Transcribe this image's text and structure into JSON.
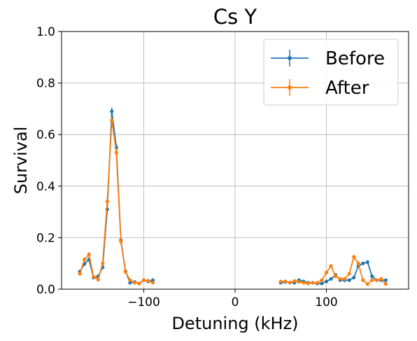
{
  "chart_data": {
    "type": "line",
    "title": "Cs Y",
    "xlabel": "Detuning (kHz)",
    "ylabel": "Survival",
    "xlim": [
      -190,
      190
    ],
    "ylim": [
      0,
      1.0
    ],
    "xticks": [
      -100,
      0,
      100
    ],
    "xtick_labels": [
      "−100",
      "0",
      "100"
    ],
    "yticks": [
      0.0,
      0.2,
      0.4,
      0.6,
      0.8,
      1.0
    ],
    "ytick_labels": [
      "0.0",
      "0.2",
      "0.4",
      "0.6",
      "0.8",
      "1.0"
    ],
    "grid": true,
    "legend_position": "top-right",
    "series": [
      {
        "name": "Before",
        "color": "#1f77b4",
        "segments": [
          {
            "x": [
              -170,
              -165,
              -160,
              -155,
              -150,
              -145,
              -140,
              -135,
              -130,
              -125,
              -120,
              -115,
              -110,
              -105,
              -100,
              -95,
              -90
            ],
            "y": [
              0.068,
              0.098,
              0.115,
              0.045,
              0.05,
              0.085,
              0.31,
              0.69,
              0.55,
              0.19,
              0.07,
              0.025,
              0.028,
              0.022,
              0.035,
              0.03,
              0.035
            ],
            "err": [
              0.008,
              0.008,
              0.008,
              0.005,
              0.005,
              0.008,
              0.012,
              0.015,
              0.014,
              0.012,
              0.008,
              0.004,
              0.004,
              0.004,
              0.004,
              0.004,
              0.004
            ]
          },
          {
            "x": [
              50,
              55,
              60,
              65,
              70,
              75,
              80,
              85,
              90,
              95,
              100,
              105,
              110,
              115,
              120,
              125,
              130,
              135,
              140,
              145,
              150,
              155,
              160,
              165
            ],
            "y": [
              0.025,
              0.028,
              0.026,
              0.025,
              0.035,
              0.03,
              0.025,
              0.025,
              0.022,
              0.022,
              0.03,
              0.04,
              0.055,
              0.035,
              0.035,
              0.035,
              0.045,
              0.09,
              0.1,
              0.105,
              0.05,
              0.035,
              0.035,
              0.035
            ],
            "err": [
              0.004,
              0.004,
              0.004,
              0.004,
              0.004,
              0.004,
              0.004,
              0.004,
              0.004,
              0.004,
              0.004,
              0.005,
              0.006,
              0.005,
              0.005,
              0.005,
              0.005,
              0.007,
              0.007,
              0.007,
              0.005,
              0.005,
              0.005,
              0.005
            ]
          }
        ]
      },
      {
        "name": "After",
        "color": "#ff7f0e",
        "segments": [
          {
            "x": [
              -170,
              -165,
              -160,
              -155,
              -150,
              -145,
              -140,
              -135,
              -130,
              -125,
              -120,
              -115,
              -110,
              -105,
              -100,
              -95,
              -90
            ],
            "y": [
              0.06,
              0.115,
              0.135,
              0.048,
              0.037,
              0.1,
              0.34,
              0.655,
              0.53,
              0.185,
              0.068,
              0.035,
              0.025,
              0.022,
              0.035,
              0.033,
              0.025
            ],
            "err": [
              0.008,
              0.008,
              0.009,
              0.005,
              0.005,
              0.008,
              0.012,
              0.015,
              0.014,
              0.012,
              0.008,
              0.004,
              0.004,
              0.004,
              0.004,
              0.004,
              0.004
            ]
          },
          {
            "x": [
              50,
              55,
              60,
              65,
              70,
              75,
              80,
              85,
              90,
              95,
              100,
              105,
              110,
              115,
              120,
              125,
              130,
              135,
              140,
              145,
              150,
              155,
              160,
              165
            ],
            "y": [
              0.03,
              0.03,
              0.025,
              0.032,
              0.028,
              0.025,
              0.022,
              0.025,
              0.025,
              0.035,
              0.065,
              0.09,
              0.05,
              0.04,
              0.04,
              0.06,
              0.125,
              0.1,
              0.035,
              0.02,
              0.035,
              0.035,
              0.04,
              0.02
            ],
            "err": [
              0.004,
              0.004,
              0.004,
              0.004,
              0.004,
              0.004,
              0.004,
              0.004,
              0.004,
              0.004,
              0.006,
              0.007,
              0.005,
              0.005,
              0.005,
              0.006,
              0.008,
              0.007,
              0.005,
              0.004,
              0.005,
              0.005,
              0.005,
              0.004
            ]
          }
        ]
      }
    ]
  }
}
